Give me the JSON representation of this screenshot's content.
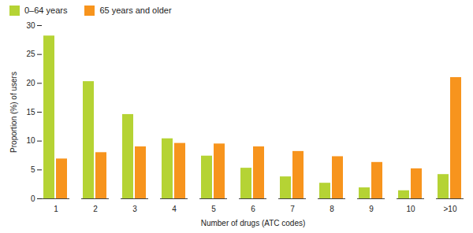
{
  "chart_data": {
    "type": "bar",
    "categories": [
      "1",
      "2",
      "3",
      "4",
      "5",
      "6",
      "7",
      "8",
      "9",
      "10",
      ">10"
    ],
    "series": [
      {
        "name": "0–64 years",
        "color": "#b5d334",
        "values": [
          28.2,
          20.3,
          14.6,
          10.4,
          7.4,
          5.3,
          3.8,
          2.7,
          1.9,
          1.4,
          4.2
        ]
      },
      {
        "name": "65 years and older",
        "color": "#f7941d",
        "values": [
          6.9,
          8.0,
          9.0,
          9.6,
          9.5,
          9.0,
          8.2,
          7.3,
          6.3,
          5.2,
          21.0
        ]
      }
    ],
    "x_label": "Number of drugs (ATC codes)",
    "y_label": "Proportion (%) of users",
    "ylim": [
      0,
      30
    ],
    "yticks": [
      0,
      5,
      10,
      15,
      20,
      25,
      30
    ],
    "grid": false,
    "legend": "top-left"
  }
}
